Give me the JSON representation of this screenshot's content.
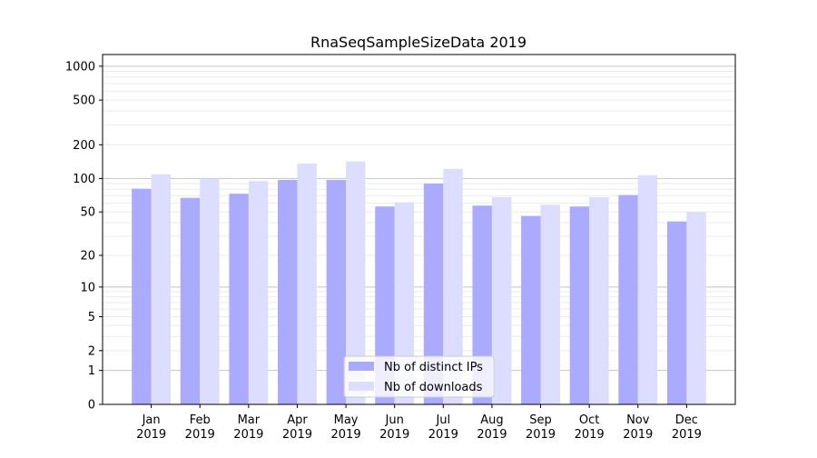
{
  "chart_data": {
    "type": "bar",
    "title": "RnaSeqSampleSizeData 2019",
    "xlabel": "",
    "ylabel": "",
    "yscale": "log(1+y)",
    "ylim": [
      0,
      1270
    ],
    "yticks": [
      0,
      1,
      2,
      5,
      10,
      20,
      50,
      100,
      200,
      500,
      1000
    ],
    "grid": true,
    "legend_position": "bottom-center",
    "categories": [
      "Jan\n2019",
      "Feb\n2019",
      "Mar\n2019",
      "Apr\n2019",
      "May\n2019",
      "Jun\n2019",
      "Jul\n2019",
      "Aug\n2019",
      "Sep\n2019",
      "Oct\n2019",
      "Nov\n2019",
      "Dec\n2019"
    ],
    "series": [
      {
        "name": "Nb of distinct IPs",
        "color": "#aaaaff",
        "values": [
          81,
          67,
          73,
          97,
          97,
          56,
          90,
          57,
          46,
          56,
          71,
          41
        ]
      },
      {
        "name": "Nb of downloads",
        "color": "#ddddff",
        "values": [
          109,
          100,
          95,
          136,
          142,
          61,
          122,
          68,
          58,
          68,
          107,
          50
        ]
      }
    ]
  }
}
